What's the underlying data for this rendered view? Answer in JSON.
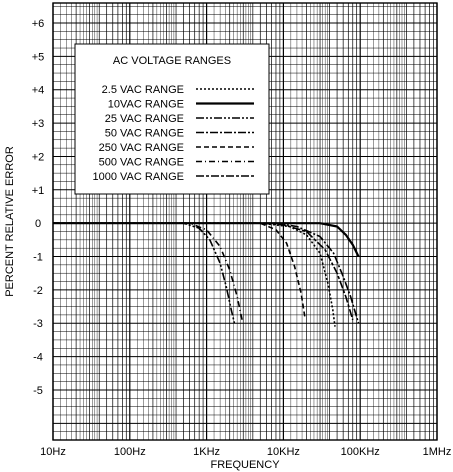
{
  "chart_data": {
    "type": "line",
    "title": "",
    "xlabel": "FREQUENCY",
    "ylabel": "PERCENT RELATIVE ERROR",
    "x_scale": "log",
    "xlim": [
      10,
      1000000
    ],
    "ylim": [
      -6.5,
      6.6
    ],
    "x_ticks": [
      {
        "value": 10,
        "label": "10Hz"
      },
      {
        "value": 100,
        "label": "100Hz"
      },
      {
        "value": 1000,
        "label": "1KHz"
      },
      {
        "value": 10000,
        "label": "10KHz"
      },
      {
        "value": 100000,
        "label": "100KHz"
      },
      {
        "value": 1000000,
        "label": "1MHz"
      }
    ],
    "y_ticks": [
      {
        "value": 6,
        "label": "+6"
      },
      {
        "value": 5,
        "label": "+5"
      },
      {
        "value": 4,
        "label": "+4"
      },
      {
        "value": 3,
        "label": "+3"
      },
      {
        "value": 2,
        "label": "+2"
      },
      {
        "value": 1,
        "label": "+1"
      },
      {
        "value": 0,
        "label": "0"
      },
      {
        "value": -1,
        "label": "-1"
      },
      {
        "value": -2,
        "label": "-2"
      },
      {
        "value": -3,
        "label": "-3"
      },
      {
        "value": -4,
        "label": "-4"
      },
      {
        "value": -5,
        "label": "-5"
      }
    ],
    "grid": true,
    "legend": {
      "title": "AC VOLTAGE RANGES",
      "position": "top-left"
    },
    "series": [
      {
        "name": "2.5 VAC RANGE",
        "dash": "2,2",
        "width": 1.6,
        "x": [
          10,
          1000,
          5000,
          12000,
          20000,
          30000,
          38000,
          44000,
          47000
        ],
        "y": [
          0,
          0,
          0,
          -0.1,
          -0.35,
          -0.9,
          -1.8,
          -2.6,
          -3.1
        ]
      },
      {
        "name": "10VAC RANGE",
        "dash": "none",
        "width": 2.2,
        "x": [
          10,
          1000,
          10000,
          30000,
          50000,
          65000,
          80000,
          95000
        ],
        "y": [
          0,
          0,
          0,
          0,
          -0.1,
          -0.35,
          -0.65,
          -1.0
        ]
      },
      {
        "name": "25 VAC RANGE",
        "dash": "8,2,2,2,2,2",
        "width": 1.6,
        "x": [
          10,
          500,
          800,
          1100,
          1500,
          1800,
          2100,
          2300
        ],
        "y": [
          0,
          0,
          -0.15,
          -0.5,
          -1.2,
          -1.9,
          -2.6,
          -3.0
        ]
      },
      {
        "name": "50 VAC RANGE",
        "dash": "8,2,2,2",
        "width": 1.6,
        "x": [
          10,
          1000,
          8000,
          15000,
          30000,
          45000,
          60000,
          75000,
          95000
        ],
        "y": [
          0,
          0,
          0,
          -0.1,
          -0.4,
          -0.9,
          -1.6,
          -2.2,
          -3.0
        ]
      },
      {
        "name": "250 VAC RANGE",
        "dash": "5,3",
        "width": 1.6,
        "x": [
          10,
          1000,
          5000,
          8000,
          11000,
          14000,
          17000,
          19000
        ],
        "y": [
          0,
          0,
          0,
          -0.2,
          -0.6,
          -1.3,
          -2.1,
          -2.8
        ]
      },
      {
        "name": "500 VAC RANGE",
        "dash": "6,3,1,3",
        "width": 1.6,
        "x": [
          10,
          600,
          1000,
          1500,
          2000,
          2500,
          2900
        ],
        "y": [
          0,
          0,
          -0.2,
          -0.7,
          -1.4,
          -2.2,
          -2.9
        ]
      },
      {
        "name": "1000 VAC RANGE",
        "dash": "8,2,3,2",
        "width": 1.6,
        "x": [
          10,
          1000,
          5000,
          10000,
          20000,
          35000,
          50000,
          65000,
          80000
        ],
        "y": [
          0,
          0,
          0,
          -0.05,
          -0.25,
          -0.8,
          -1.5,
          -2.2,
          -2.9
        ]
      }
    ]
  }
}
